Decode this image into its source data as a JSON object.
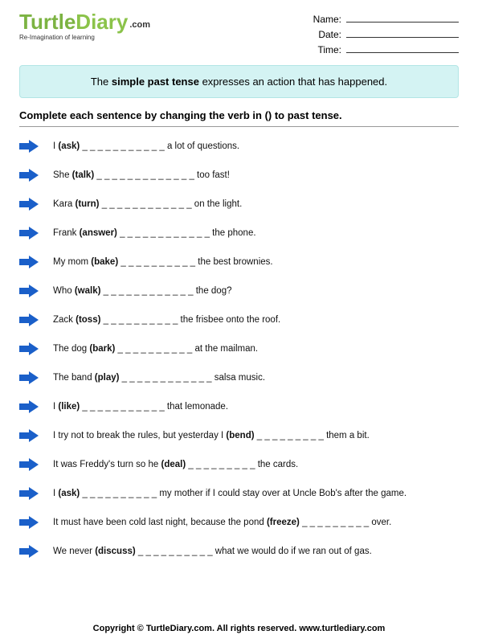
{
  "logo": {
    "word1": "Turtle",
    "word2": "Diary",
    "suffix": ".com",
    "tagline": "Re-Imagination of learning"
  },
  "meta": {
    "name_label": "Name:",
    "date_label": "Date:",
    "time_label": "Time:"
  },
  "info_box": {
    "pre": "The ",
    "bold": "simple past tense",
    "post": " expresses an action that has happened."
  },
  "instructions": "Complete each sentence by changing the verb in () to past tense.",
  "arrow_color": "#1a5fc9",
  "items": [
    {
      "pre": "I ",
      "verb": "(ask)",
      "post": " _ _ _ _ _ _ _ _ _  _ _ a lot of questions."
    },
    {
      "pre": "She ",
      "verb": "(talk)",
      "post": " _ _ _ _ _ _ _ _ _ _ _ _ _ too fast!"
    },
    {
      "pre": "Kara ",
      "verb": "(turn)",
      "post": " _ _ _ _ _ _ _ _ _ _ _ _  on the light."
    },
    {
      "pre": "Frank ",
      "verb": "(answer)",
      "post": " _ _ _ _ _ _ _ _ _ _ _ _ the phone."
    },
    {
      "pre": "My mom ",
      "verb": "(bake)",
      "post": " _ _ _ _ _ _ _ _ _ _ the best brownies."
    },
    {
      "pre": "Who ",
      "verb": "(walk)",
      "post": " _ _ _ _ _ _ _ _ _ _ _ _ the dog?"
    },
    {
      "pre": "Zack ",
      "verb": "(toss)",
      "post": " _ _ _ _ _ _ _ _ _ _ the frisbee onto the roof."
    },
    {
      "pre": "The dog ",
      "verb": "(bark)",
      "post": " _ _ _ _ _ _ _ _ _ _ at the mailman."
    },
    {
      "pre": "The band ",
      "verb": "(play)",
      "post": " _ _ _ _ _ _ _ _ _ _ _ _ salsa music."
    },
    {
      "pre": "I ",
      "verb": "(like)",
      "post": " _ _ _ _ _ _ _ _ _ _ _  that lemonade."
    },
    {
      "pre": "I try not to break the rules, but yesterday I ",
      "verb": "(bend)",
      "post": "  _ _ _ _ _ _ _ _ _ them a bit."
    },
    {
      "pre": "It was Freddy's turn so he ",
      "verb": "(deal)",
      "post": "  _ _ _ _ _ _ _ _ _ the cards."
    },
    {
      "pre": "I ",
      "verb": "(ask)",
      "post": "  _ _ _ _ _ _ _ _ _ _ my mother if I could stay over at Uncle Bob's after the game."
    },
    {
      "pre": "It must have been cold last night, because the pond ",
      "verb": "(freeze)",
      "post": "  _ _ _ _ _ _ _ _ _ over."
    },
    {
      "pre": "We never ",
      "verb": "(discuss)",
      "post": "  _ _ _ _ _ _ _ _ _ _ what we would do if we ran out of gas."
    }
  ],
  "footer": "Copyright © TurtleDiary.com. All rights reserved.   www.turtlediary.com"
}
